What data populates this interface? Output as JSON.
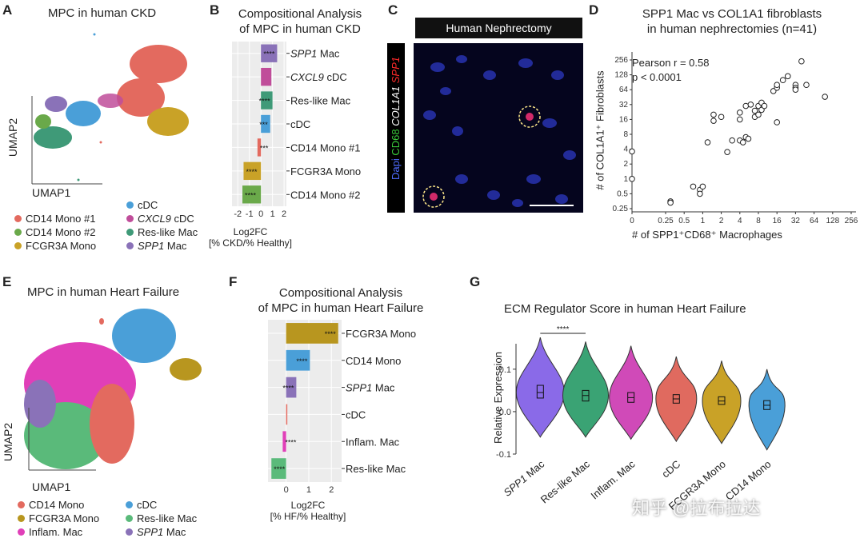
{
  "panels": {
    "a": {
      "letter": "A",
      "title": "MPC in human CKD",
      "xlabel": "UMAP1",
      "ylabel": "UMAP2",
      "legend": [
        {
          "label": "CD14 Mono #1",
          "color": "#e36a5f"
        },
        {
          "label": "CD14 Mono #2",
          "color": "#6aa94a"
        },
        {
          "label": "FCGR3A Mono",
          "color": "#c9a227"
        },
        {
          "label": "cDC",
          "color": "#4a9fd8"
        },
        {
          "label": "CXCL9 cDC",
          "color": "#c04d9a",
          "italic_part": "CXCL9"
        },
        {
          "label": "Res-like Mac",
          "color": "#3f9a78"
        },
        {
          "label": "SPP1 Mac",
          "color": "#8a72b8",
          "italic_part": "SPP1"
        }
      ]
    },
    "b": {
      "letter": "B",
      "title_line1": "Compositional Analysis",
      "title_line2": "of MPC in human CKD",
      "xlabel_line1": "Log2FC",
      "xlabel_line2": "[% CKD/% Healthy]"
    },
    "c": {
      "letter": "C",
      "banner": "Human Nephrectomy",
      "channels": [
        {
          "label": "Dapi",
          "color": "#4f6cff"
        },
        {
          "label": " CD68",
          "color": "#39c83a"
        },
        {
          "label": " COL1A1",
          "color": "#ffffff"
        },
        {
          "label": " SPP1",
          "color": "#ff2a2a"
        }
      ]
    },
    "d": {
      "letter": "D",
      "title_line1": "SPP1 Mac vs COL1A1 fibroblasts",
      "title_line2": "in human nephrectomies (n=41)",
      "annotation_line1": "Pearson r = 0.58",
      "annotation_line2": "p < 0.0001",
      "xlabel": "# of SPP1⁺CD68⁺ Macrophages",
      "ylabel": "# of COL1A1⁺ Fibroblasts"
    },
    "e": {
      "letter": "E",
      "title": "MPC in human Heart Failure",
      "xlabel": "UMAP1",
      "ylabel": "UMAP2",
      "legend": [
        {
          "label": "CD14 Mono",
          "color": "#e36a5f"
        },
        {
          "label": "FCGR3A Mono",
          "color": "#b8961f"
        },
        {
          "label": "Inflam. Mac",
          "color": "#e03fb8"
        },
        {
          "label": "cDC",
          "color": "#4a9fd8"
        },
        {
          "label": "Res-like Mac",
          "color": "#5aba7a"
        },
        {
          "label": "SPP1 Mac",
          "color": "#8a72b8",
          "italic_part": "SPP1"
        }
      ]
    },
    "f": {
      "letter": "F",
      "title_line1": "Compositional Analysis",
      "title_line2": "of MPC in human Heart Failure",
      "xlabel_line1": "Log2FC",
      "xlabel_line2": "[% HF/% Healthy]"
    },
    "g": {
      "letter": "G",
      "title": "ECM Regulator Score in human Heart Failure",
      "ylabel": "Relative Expression",
      "sig": "****"
    }
  },
  "watermark": "知乎 @拉布拉达",
  "chart_data": [
    {
      "id": "B",
      "type": "bar",
      "orientation": "horizontal",
      "categories": [
        "SPP1 Mac",
        "CXCL9 cDC",
        "Res-like Mac",
        "cDC",
        "CD14 Mono #1",
        "FCGR3A Mono",
        "CD14 Mono #2"
      ],
      "values": [
        1.4,
        0.9,
        1.0,
        0.8,
        -0.3,
        -1.5,
        -1.6
      ],
      "significance": [
        "****",
        "",
        "****",
        "***",
        "***",
        "****",
        "****"
      ],
      "colors": [
        "#8a72b8",
        "#c04d9a",
        "#3f9a78",
        "#4a9fd8",
        "#e36a5f",
        "#c9a227",
        "#6aa94a"
      ],
      "xlim": [
        -2.5,
        2.2
      ],
      "xticks": [
        -2,
        -1,
        0,
        1,
        2
      ]
    },
    {
      "id": "D",
      "type": "scatter",
      "xticks": [
        "0",
        "0.25",
        "0.5",
        "1",
        "2",
        "4",
        "8",
        "16",
        "32",
        "64",
        "128",
        "256"
      ],
      "yticks": [
        "0.25",
        "0.5",
        "1",
        "2",
        "4",
        "8",
        "16",
        "32",
        "64",
        "128",
        "256"
      ],
      "x": [
        0,
        0,
        0.3,
        0.3,
        0.7,
        0.9,
        1,
        0.9,
        1.2,
        1.5,
        1.5,
        2,
        2.5,
        3,
        4,
        4,
        4,
        4.5,
        5,
        5,
        5.5,
        6,
        7,
        7,
        8,
        8,
        9,
        9,
        10,
        14,
        16,
        16,
        16,
        20,
        24,
        32,
        32,
        32,
        40,
        48,
        96
      ],
      "y": [
        3.6,
        1,
        0.35,
        0.33,
        0.7,
        0.6,
        0.7,
        0.5,
        5.5,
        20,
        15,
        18,
        3.5,
        6,
        22,
        16,
        6,
        5.5,
        30,
        7,
        6.5,
        32,
        18,
        24,
        20,
        30,
        35,
        25,
        30,
        60,
        70,
        14,
        80,
        100,
        120,
        80,
        70,
        64,
        240,
        80,
        46
      ]
    },
    {
      "id": "F",
      "type": "bar",
      "orientation": "horizontal",
      "categories": [
        "FCGR3A Mono",
        "CD14 Mono",
        "SPP1 Mac",
        "cDC",
        "Inflam. Mac",
        "Res-like Mac"
      ],
      "values": [
        2.3,
        1.05,
        0.45,
        0.05,
        -0.15,
        -0.65
      ],
      "significance": [
        "****",
        "****",
        "****",
        "",
        "****",
        "****"
      ],
      "colors": [
        "#b8961f",
        "#4a9fd8",
        "#8a72b8",
        "#e36a5f",
        "#e03fb8",
        "#5aba7a"
      ],
      "xlim": [
        -0.8,
        2.45
      ],
      "xticks": [
        0,
        1,
        2
      ]
    },
    {
      "id": "G",
      "type": "violin",
      "categories": [
        "SPP1 Mac",
        "Res-like Mac",
        "Inflam. Mac",
        "cDC",
        "FCGR3A Mono",
        "CD14 Mono"
      ],
      "medians": [
        0.045,
        0.038,
        0.033,
        0.03,
        0.025,
        0.015
      ],
      "q1": [
        0.032,
        0.025,
        0.022,
        0.02,
        0.017,
        0.005
      ],
      "q3": [
        0.062,
        0.05,
        0.045,
        0.04,
        0.035,
        0.026
      ],
      "min": [
        -0.06,
        -0.06,
        -0.065,
        -0.07,
        -0.075,
        -0.09
      ],
      "max": [
        0.175,
        0.165,
        0.155,
        0.13,
        0.12,
        0.1
      ],
      "colors": [
        "#8a6ae8",
        "#3aa374",
        "#d04ab8",
        "#e06a5f",
        "#c9a227",
        "#4a9fd8"
      ],
      "ylim": [
        -0.1,
        0.16
      ],
      "yticks": [
        -0.1,
        0.0,
        0.1
      ]
    }
  ]
}
